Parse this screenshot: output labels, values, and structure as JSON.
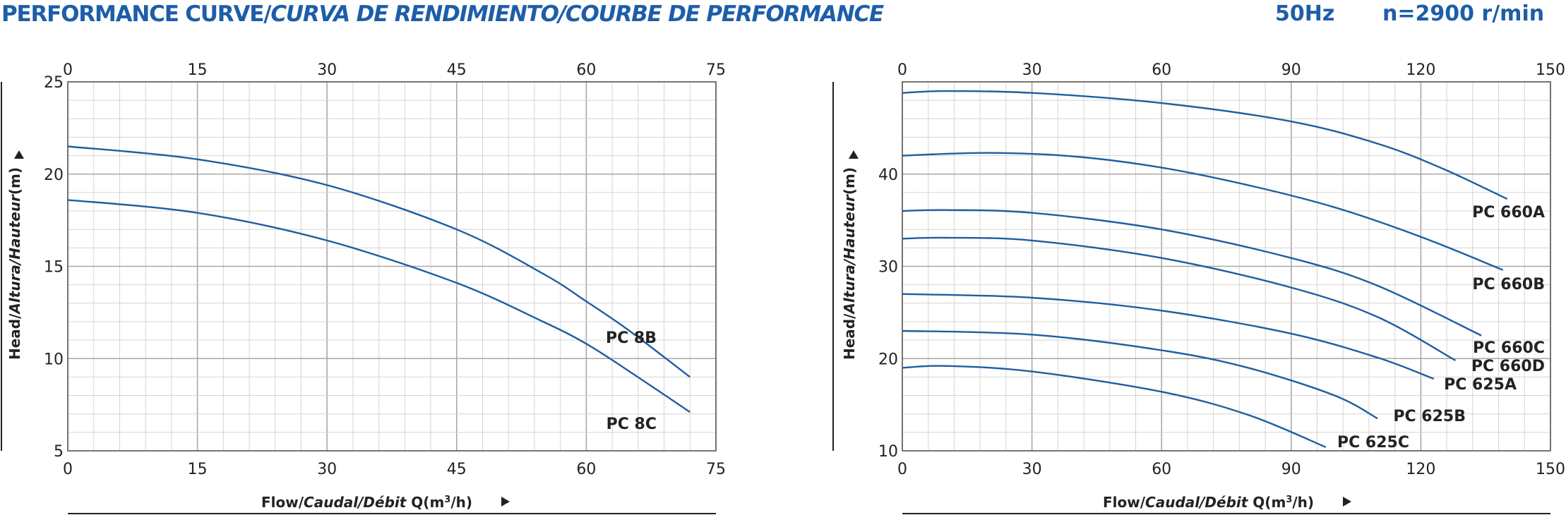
{
  "header": {
    "title_part1": "PERFORMANCE CURVE/",
    "title_part2": "CURVA DE RENDIMIENTO/COURBE DE PERFORMANCE",
    "frequency": "50Hz",
    "speed": "n=2900 r/min"
  },
  "colors": {
    "curve": "#1d5fa0",
    "title": "#1d5ea8",
    "grid_minor": "#d4d4d4",
    "grid_major": "#a8a8a8"
  },
  "chart_data": [
    {
      "type": "line",
      "xlabel_parts": [
        "Flow/",
        "Caudal/Débit",
        " Q(m",
        "3",
        "/h)"
      ],
      "ylabel_parts": [
        "Head/",
        "Altura/Hauteur",
        "(m)"
      ],
      "xlim": [
        0,
        75
      ],
      "ylim": [
        5,
        25
      ],
      "x_ticks": [
        "0",
        "15",
        "30",
        "45",
        "60",
        "75"
      ],
      "y_ticks": [
        "5",
        "10",
        "15",
        "20",
        "25"
      ],
      "series": [
        {
          "name": "PC 8B",
          "x": [
            0,
            15,
            30,
            45,
            55,
            60,
            65,
            72
          ],
          "y": [
            21.5,
            20.8,
            19.4,
            17.0,
            14.6,
            13.1,
            11.5,
            9.0
          ]
        },
        {
          "name": "PC 8C",
          "x": [
            0,
            15,
            30,
            45,
            55,
            60,
            65,
            72
          ],
          "y": [
            18.6,
            17.9,
            16.4,
            14.1,
            12.0,
            10.8,
            9.3,
            7.1
          ]
        }
      ]
    },
    {
      "type": "line",
      "xlabel_parts": [
        "Flow/",
        "Caudal/Débit",
        " Q(m",
        "3",
        "/h)"
      ],
      "ylabel_parts": [
        "Head/",
        "Altura/Hauteur",
        "(m)"
      ],
      "xlim": [
        0,
        150
      ],
      "ylim": [
        10,
        50
      ],
      "x_ticks": [
        "0",
        "30",
        "60",
        "90",
        "120",
        "150"
      ],
      "y_ticks": [
        "10",
        "20",
        "30",
        "40"
      ],
      "series": [
        {
          "name": "PC 660A",
          "x": [
            0,
            10,
            30,
            60,
            90,
            110,
            125,
            140
          ],
          "y": [
            48.8,
            49.0,
            48.8,
            47.7,
            45.7,
            43.3,
            40.6,
            37.3
          ]
        },
        {
          "name": "PC 660B",
          "x": [
            0,
            20,
            40,
            60,
            80,
            100,
            120,
            139
          ],
          "y": [
            42.0,
            42.3,
            41.9,
            40.7,
            38.8,
            36.4,
            33.2,
            29.6
          ]
        },
        {
          "name": "PC 660C",
          "x": [
            0,
            10,
            30,
            60,
            90,
            110,
            134
          ],
          "y": [
            36.0,
            36.1,
            35.8,
            34.0,
            30.9,
            27.9,
            22.5
          ]
        },
        {
          "name": "PC 660D",
          "x": [
            0,
            10,
            30,
            60,
            90,
            110,
            128
          ],
          "y": [
            33.0,
            33.1,
            32.8,
            30.9,
            27.7,
            24.5,
            19.8
          ]
        },
        {
          "name": "PC 625A",
          "x": [
            0,
            30,
            60,
            90,
            110,
            123
          ],
          "y": [
            27.0,
            26.6,
            25.2,
            22.7,
            20.1,
            17.8
          ]
        },
        {
          "name": "PC 625B",
          "x": [
            0,
            30,
            60,
            80,
            100,
            110
          ],
          "y": [
            23.0,
            22.6,
            20.9,
            19.0,
            16.0,
            13.5
          ]
        },
        {
          "name": "PC 625C",
          "x": [
            0,
            10,
            30,
            60,
            80,
            98
          ],
          "y": [
            19.0,
            19.2,
            18.6,
            16.4,
            13.9,
            10.4
          ]
        }
      ]
    }
  ]
}
